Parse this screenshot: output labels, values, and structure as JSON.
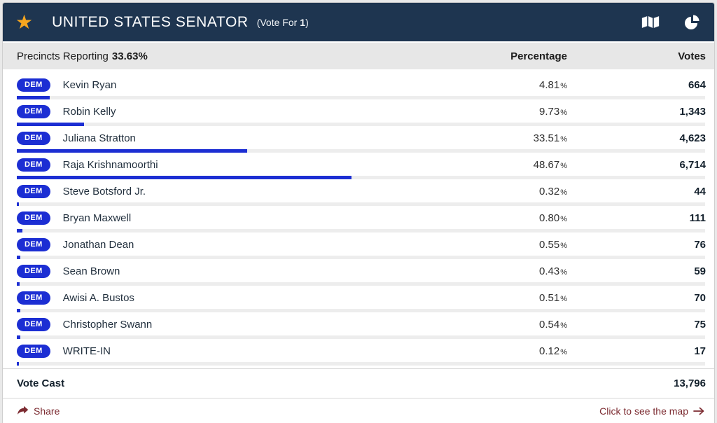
{
  "colors": {
    "header_bg": "#1e3550",
    "star": "#f6a61f",
    "party_blue": "#1c2ed3",
    "bar_track": "#ededed",
    "link_maroon": "#7c2b31",
    "subheader_bg": "#e7e7e7"
  },
  "header": {
    "title": "UNITED STATES SENATOR",
    "vote_for_open": "(Vote For",
    "vote_for_number": "1",
    "vote_for_close": ")",
    "icons": [
      "star-icon",
      "map-icon",
      "pie-chart-icon"
    ]
  },
  "subheader": {
    "precincts_label": "Precincts Reporting",
    "precincts_value": "33.63%",
    "percentage_column": "Percentage",
    "votes_column": "Votes"
  },
  "percent_symbol": "%",
  "candidates": [
    {
      "party": "DEM",
      "name": "Kevin Ryan",
      "percentage": "4.81",
      "votes": "664",
      "bar_pct": 4.81
    },
    {
      "party": "DEM",
      "name": "Robin Kelly",
      "percentage": "9.73",
      "votes": "1,343",
      "bar_pct": 9.73
    },
    {
      "party": "DEM",
      "name": "Juliana Stratton",
      "percentage": "33.51",
      "votes": "4,623",
      "bar_pct": 33.51
    },
    {
      "party": "DEM",
      "name": "Raja Krishnamoorthi",
      "percentage": "48.67",
      "votes": "6,714",
      "bar_pct": 48.67
    },
    {
      "party": "DEM",
      "name": "Steve Botsford Jr.",
      "percentage": "0.32",
      "votes": "44",
      "bar_pct": 0.32
    },
    {
      "party": "DEM",
      "name": "Bryan Maxwell",
      "percentage": "0.80",
      "votes": "111",
      "bar_pct": 0.8
    },
    {
      "party": "DEM",
      "name": "Jonathan Dean",
      "percentage": "0.55",
      "votes": "76",
      "bar_pct": 0.55
    },
    {
      "party": "DEM",
      "name": "Sean Brown",
      "percentage": "0.43",
      "votes": "59",
      "bar_pct": 0.43
    },
    {
      "party": "DEM",
      "name": "Awisi A. Bustos",
      "percentage": "0.51",
      "votes": "70",
      "bar_pct": 0.51
    },
    {
      "party": "DEM",
      "name": "Christopher Swann",
      "percentage": "0.54",
      "votes": "75",
      "bar_pct": 0.54
    },
    {
      "party": "DEM",
      "name": "WRITE-IN",
      "percentage": "0.12",
      "votes": "17",
      "bar_pct": 0.12
    }
  ],
  "totals": {
    "label": "Vote Cast",
    "votes": "13,796"
  },
  "footer": {
    "share_label": "Share",
    "map_link_label": "Click to see the map"
  }
}
